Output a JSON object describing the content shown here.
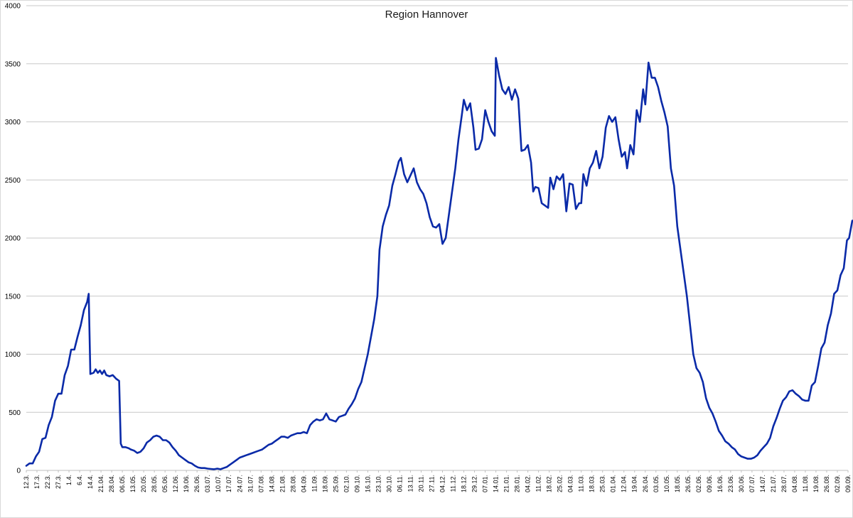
{
  "chart_data": {
    "type": "line",
    "title": "Region Hannover",
    "xlabel": "",
    "ylabel": "",
    "ylim": [
      0,
      4000
    ],
    "y_ticks": [
      0,
      500,
      1000,
      1500,
      2000,
      2500,
      3000,
      3500,
      4000
    ],
    "grid": "horizontal",
    "legend": "none",
    "x_tick_labels": [
      "12.3.",
      "17.3.",
      "22.3.",
      "27.3.",
      "1.4.",
      "6.4.",
      "14.4.",
      "21.04.",
      "28.04.",
      "06.05.",
      "13.05.",
      "20.05.",
      "28.05.",
      "05.06.",
      "12.06.",
      "19.06.",
      "26.06.",
      "03.07.",
      "10.07.",
      "17.07.",
      "24.07.",
      "31.07.",
      "07.08.",
      "14.08.",
      "21.08.",
      "28.08.",
      "04.09.",
      "11.09.",
      "18.09.",
      "25.09.",
      "02.10.",
      "09.10.",
      "16.10.",
      "23.10.",
      "30.10.",
      "06.11.",
      "13.11.",
      "20.11.",
      "27.11.",
      "04.12.",
      "11.12.",
      "18.12.",
      "29.12.",
      "07.01.",
      "14.01.",
      "21.01.",
      "28.01.",
      "04.02.",
      "11.02.",
      "18.02.",
      "25.02.",
      "04.03.",
      "11.03.",
      "18.03.",
      "25.03.",
      "01.04.",
      "12.04.",
      "19.04.",
      "26.04.",
      "03.05.",
      "10.05.",
      "18.05.",
      "26.05.",
      "02.06.",
      "09.06.",
      "16.06.",
      "23.06.",
      "30.06.",
      "07.07.",
      "14.07.",
      "21.07.",
      "28.07.",
      "04.08.",
      "11.08.",
      "19.08.",
      "26.08.",
      "02.09.",
      "09.09."
    ],
    "series": [
      {
        "color": "#0a2aa8",
        "points": [
          [
            0,
            40
          ],
          [
            0.3,
            60
          ],
          [
            0.6,
            60
          ],
          [
            0.9,
            120
          ],
          [
            1.2,
            160
          ],
          [
            1.5,
            270
          ],
          [
            1.8,
            280
          ],
          [
            2.1,
            390
          ],
          [
            2.4,
            460
          ],
          [
            2.7,
            600
          ],
          [
            3.0,
            660
          ],
          [
            3.3,
            660
          ],
          [
            3.6,
            820
          ],
          [
            3.9,
            900
          ],
          [
            4.2,
            1040
          ],
          [
            4.5,
            1040
          ],
          [
            4.8,
            1150
          ],
          [
            5.1,
            1250
          ],
          [
            5.4,
            1380
          ],
          [
            5.7,
            1450
          ],
          [
            5.85,
            1520
          ],
          [
            6.0,
            830
          ],
          [
            6.3,
            840
          ],
          [
            6.5,
            870
          ],
          [
            6.7,
            840
          ],
          [
            6.9,
            860
          ],
          [
            7.1,
            830
          ],
          [
            7.3,
            860
          ],
          [
            7.5,
            820
          ],
          [
            7.8,
            810
          ],
          [
            8.1,
            820
          ],
          [
            8.4,
            790
          ],
          [
            8.7,
            770
          ],
          [
            8.85,
            230
          ],
          [
            9.0,
            200
          ],
          [
            9.3,
            200
          ],
          [
            9.6,
            190
          ],
          [
            9.8,
            180
          ],
          [
            10.1,
            170
          ],
          [
            10.4,
            150
          ],
          [
            10.7,
            160
          ],
          [
            11.0,
            190
          ],
          [
            11.3,
            240
          ],
          [
            11.6,
            260
          ],
          [
            11.9,
            290
          ],
          [
            12.2,
            300
          ],
          [
            12.5,
            290
          ],
          [
            12.8,
            260
          ],
          [
            13.1,
            260
          ],
          [
            13.4,
            240
          ],
          [
            13.7,
            200
          ],
          [
            14.0,
            170
          ],
          [
            14.3,
            130
          ],
          [
            14.6,
            110
          ],
          [
            14.9,
            90
          ],
          [
            15.2,
            70
          ],
          [
            15.5,
            60
          ],
          [
            15.8,
            40
          ],
          [
            16.1,
            25
          ],
          [
            16.4,
            20
          ],
          [
            16.7,
            20
          ],
          [
            17.0,
            15
          ],
          [
            17.3,
            12
          ],
          [
            17.6,
            10
          ],
          [
            17.9,
            15
          ],
          [
            18.2,
            10
          ],
          [
            18.5,
            20
          ],
          [
            18.8,
            30
          ],
          [
            19.1,
            50
          ],
          [
            19.4,
            70
          ],
          [
            19.7,
            90
          ],
          [
            20.0,
            110
          ],
          [
            20.3,
            120
          ],
          [
            20.6,
            130
          ],
          [
            20.9,
            140
          ],
          [
            21.2,
            150
          ],
          [
            21.5,
            160
          ],
          [
            21.8,
            170
          ],
          [
            22.1,
            180
          ],
          [
            22.4,
            200
          ],
          [
            22.7,
            220
          ],
          [
            23.0,
            230
          ],
          [
            23.3,
            250
          ],
          [
            23.6,
            270
          ],
          [
            23.9,
            290
          ],
          [
            24.2,
            290
          ],
          [
            24.5,
            280
          ],
          [
            24.8,
            300
          ],
          [
            25.1,
            310
          ],
          [
            25.4,
            320
          ],
          [
            25.7,
            320
          ],
          [
            26.0,
            330
          ],
          [
            26.3,
            320
          ],
          [
            26.6,
            390
          ],
          [
            26.9,
            420
          ],
          [
            27.2,
            440
          ],
          [
            27.5,
            430
          ],
          [
            27.8,
            440
          ],
          [
            28.1,
            490
          ],
          [
            28.4,
            440
          ],
          [
            28.7,
            430
          ],
          [
            29.0,
            420
          ],
          [
            29.3,
            460
          ],
          [
            29.6,
            470
          ],
          [
            29.9,
            480
          ],
          [
            30.2,
            530
          ],
          [
            30.5,
            570
          ],
          [
            30.8,
            620
          ],
          [
            31.1,
            700
          ],
          [
            31.4,
            760
          ],
          [
            31.7,
            880
          ],
          [
            32.0,
            1000
          ],
          [
            32.3,
            1150
          ],
          [
            32.6,
            1300
          ],
          [
            32.9,
            1500
          ],
          [
            33.1,
            1900
          ],
          [
            33.4,
            2100
          ],
          [
            33.7,
            2200
          ],
          [
            34.0,
            2280
          ],
          [
            34.3,
            2450
          ],
          [
            34.6,
            2550
          ],
          [
            34.9,
            2660
          ],
          [
            35.1,
            2690
          ],
          [
            35.4,
            2550
          ],
          [
            35.7,
            2480
          ],
          [
            36.0,
            2540
          ],
          [
            36.3,
            2600
          ],
          [
            36.6,
            2480
          ],
          [
            36.9,
            2420
          ],
          [
            37.2,
            2380
          ],
          [
            37.5,
            2300
          ],
          [
            37.8,
            2180
          ],
          [
            38.1,
            2100
          ],
          [
            38.4,
            2090
          ],
          [
            38.7,
            2120
          ],
          [
            39.0,
            1950
          ],
          [
            39.3,
            2000
          ],
          [
            39.6,
            2200
          ],
          [
            39.9,
            2400
          ],
          [
            40.2,
            2600
          ],
          [
            40.5,
            2850
          ],
          [
            40.8,
            3050
          ],
          [
            41.0,
            3190
          ],
          [
            41.3,
            3100
          ],
          [
            41.6,
            3160
          ],
          [
            41.9,
            2950
          ],
          [
            42.1,
            2760
          ],
          [
            42.4,
            2770
          ],
          [
            42.7,
            2850
          ],
          [
            43.0,
            3100
          ],
          [
            43.3,
            3000
          ],
          [
            43.6,
            2920
          ],
          [
            43.9,
            2880
          ],
          [
            44.0,
            3550
          ],
          [
            44.3,
            3400
          ],
          [
            44.6,
            3280
          ],
          [
            44.9,
            3240
          ],
          [
            45.2,
            3300
          ],
          [
            45.5,
            3190
          ],
          [
            45.8,
            3280
          ],
          [
            46.1,
            3200
          ],
          [
            46.4,
            2750
          ],
          [
            46.7,
            2760
          ],
          [
            47.0,
            2800
          ],
          [
            47.3,
            2650
          ],
          [
            47.5,
            2400
          ],
          [
            47.7,
            2440
          ],
          [
            48.0,
            2430
          ],
          [
            48.3,
            2300
          ],
          [
            48.6,
            2280
          ],
          [
            48.9,
            2260
          ],
          [
            49.1,
            2520
          ],
          [
            49.4,
            2420
          ],
          [
            49.7,
            2530
          ],
          [
            50.0,
            2500
          ],
          [
            50.3,
            2550
          ],
          [
            50.6,
            2230
          ],
          [
            50.9,
            2470
          ],
          [
            51.2,
            2460
          ],
          [
            51.5,
            2250
          ],
          [
            51.8,
            2300
          ],
          [
            52.0,
            2300
          ],
          [
            52.2,
            2550
          ],
          [
            52.5,
            2450
          ],
          [
            52.8,
            2600
          ],
          [
            53.1,
            2650
          ],
          [
            53.4,
            2750
          ],
          [
            53.7,
            2600
          ],
          [
            54.0,
            2700
          ],
          [
            54.3,
            2950
          ],
          [
            54.6,
            3050
          ],
          [
            54.9,
            3000
          ],
          [
            55.2,
            3040
          ],
          [
            55.5,
            2850
          ],
          [
            55.8,
            2700
          ],
          [
            56.1,
            2740
          ],
          [
            56.3,
            2600
          ],
          [
            56.6,
            2800
          ],
          [
            56.9,
            2720
          ],
          [
            57.2,
            3100
          ],
          [
            57.5,
            3000
          ],
          [
            57.8,
            3280
          ],
          [
            58.0,
            3150
          ],
          [
            58.3,
            3510
          ],
          [
            58.6,
            3380
          ],
          [
            58.9,
            3380
          ],
          [
            59.2,
            3300
          ],
          [
            59.5,
            3180
          ],
          [
            59.8,
            3080
          ],
          [
            60.1,
            2960
          ],
          [
            60.4,
            2600
          ],
          [
            60.7,
            2450
          ],
          [
            61.0,
            2100
          ],
          [
            61.3,
            1900
          ],
          [
            61.6,
            1700
          ],
          [
            61.9,
            1500
          ],
          [
            62.2,
            1250
          ],
          [
            62.5,
            1000
          ],
          [
            62.8,
            880
          ],
          [
            63.1,
            840
          ],
          [
            63.4,
            760
          ],
          [
            63.7,
            620
          ],
          [
            64.0,
            540
          ],
          [
            64.3,
            490
          ],
          [
            64.6,
            420
          ],
          [
            64.9,
            340
          ],
          [
            65.2,
            300
          ],
          [
            65.5,
            250
          ],
          [
            65.8,
            230
          ],
          [
            66.1,
            200
          ],
          [
            66.4,
            180
          ],
          [
            66.7,
            140
          ],
          [
            67.0,
            120
          ],
          [
            67.3,
            110
          ],
          [
            67.6,
            100
          ],
          [
            67.9,
            100
          ],
          [
            68.2,
            110
          ],
          [
            68.5,
            130
          ],
          [
            68.8,
            170
          ],
          [
            69.1,
            200
          ],
          [
            69.4,
            230
          ],
          [
            69.7,
            280
          ],
          [
            70.0,
            380
          ],
          [
            70.3,
            450
          ],
          [
            70.6,
            530
          ],
          [
            70.9,
            600
          ],
          [
            71.2,
            630
          ],
          [
            71.5,
            680
          ],
          [
            71.8,
            690
          ],
          [
            72.1,
            660
          ],
          [
            72.4,
            640
          ],
          [
            72.7,
            610
          ],
          [
            73.0,
            600
          ],
          [
            73.3,
            600
          ],
          [
            73.6,
            730
          ],
          [
            73.9,
            760
          ],
          [
            74.2,
            900
          ],
          [
            74.5,
            1050
          ],
          [
            74.8,
            1100
          ],
          [
            75.1,
            1250
          ],
          [
            75.4,
            1350
          ],
          [
            75.7,
            1520
          ],
          [
            76.0,
            1550
          ],
          [
            76.3,
            1680
          ],
          [
            76.6,
            1740
          ],
          [
            76.9,
            1980
          ],
          [
            77.1,
            2000
          ],
          [
            77.4,
            2150
          ],
          [
            77.7,
            2150
          ]
        ]
      }
    ]
  }
}
